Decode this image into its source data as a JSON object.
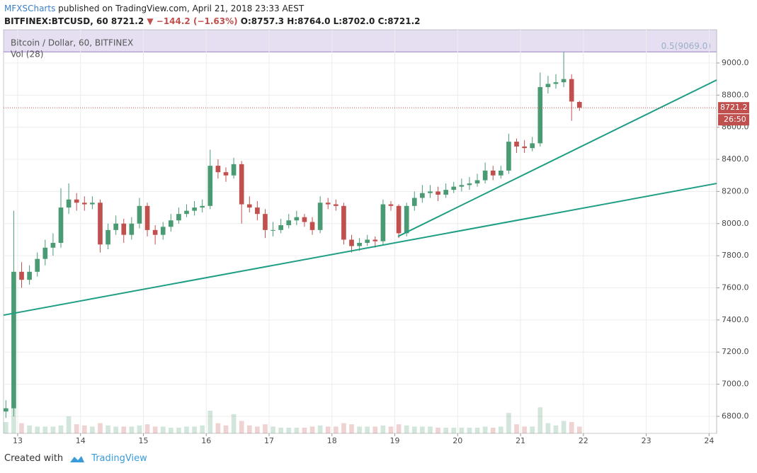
{
  "header": {
    "publisher": "MFXSCharts",
    "published": "published on TradingView.com, April 21, 2018 23:33 AEST",
    "symbol": "BITFINEX:BTCUSD, 60",
    "last": "8721.2",
    "change": "▼ −144.2 (−1.63%)",
    "o": "O:8757.3",
    "h": "H:8764.0",
    "l": "L:8702.0",
    "c": "C:8721.2"
  },
  "chart_data": {
    "type": "candlestick",
    "legend": "Bitcoin / Dollar, 60, BITFINEX",
    "volume_label": "Vol (28)",
    "up_color": "#4a9b73",
    "down_color": "#c0504d",
    "grid": true,
    "x": [
      12.8125,
      12.9375,
      13.0625,
      13.1875,
      13.3125,
      13.4375,
      13.5625,
      13.6875,
      13.8125,
      13.9375,
      14.0625,
      14.1875,
      14.3125,
      14.4375,
      14.5625,
      14.6875,
      14.8125,
      14.9375,
      15.0625,
      15.1875,
      15.3125,
      15.4375,
      15.5625,
      15.6875,
      15.8125,
      15.9375,
      16.0625,
      16.1875,
      16.3125,
      16.4375,
      16.5625,
      16.6875,
      16.8125,
      16.9375,
      17.0625,
      17.1875,
      17.3125,
      17.4375,
      17.5625,
      17.6875,
      17.8125,
      17.9375,
      18.0625,
      18.1875,
      18.3125,
      18.4375,
      18.5625,
      18.6875,
      18.8125,
      18.9375,
      19.0625,
      19.1875,
      19.3125,
      19.4375,
      19.5625,
      19.6875,
      19.8125,
      19.9375,
      20.0625,
      20.1875,
      20.3125,
      20.4375,
      20.5625,
      20.6875,
      20.8125,
      20.9375,
      21.0625,
      21.1875,
      21.3125,
      21.4375,
      21.5625,
      21.6875,
      21.8125,
      21.9375
    ],
    "open": [
      6830,
      6850,
      7700,
      7650,
      7700,
      7780,
      7850,
      7880,
      8100,
      8150,
      8130,
      8120,
      8130,
      7870,
      7960,
      8000,
      7930,
      8000,
      8110,
      7960,
      7930,
      7980,
      8020,
      8060,
      8080,
      8100,
      8110,
      8360,
      8320,
      8300,
      8370,
      8120,
      8100,
      8060,
      7960,
      7960,
      7990,
      8020,
      8040,
      8010,
      7960,
      8130,
      8120,
      8110,
      7900,
      7860,
      7880,
      7900,
      7890,
      8120,
      8110,
      7940,
      8110,
      8160,
      8190,
      8200,
      8180,
      8210,
      8230,
      8240,
      8250,
      8270,
      8330,
      8300,
      8330,
      8510,
      8480,
      8470,
      8500,
      8850,
      8870,
      8880,
      8900,
      8757.3
    ],
    "high": [
      6900,
      8080,
      7760,
      7740,
      7820,
      7900,
      7940,
      8220,
      8250,
      8190,
      8170,
      8170,
      8150,
      8000,
      8050,
      8030,
      8040,
      8160,
      8130,
      7990,
      8010,
      8060,
      8100,
      8120,
      8140,
      8150,
      8460,
      8400,
      8350,
      8410,
      8390,
      8170,
      8140,
      8090,
      8010,
      8030,
      8060,
      8080,
      8060,
      8040,
      8170,
      8160,
      8150,
      8130,
      7930,
      7910,
      7930,
      7920,
      8150,
      8140,
      8120,
      8130,
      8200,
      8240,
      8240,
      8230,
      8250,
      8260,
      8280,
      8290,
      8310,
      8380,
      8360,
      8360,
      8560,
      8530,
      8520,
      8540,
      8940,
      8920,
      8930,
      9070,
      8930,
      8764.0
    ],
    "low": [
      6790,
      6800,
      7600,
      7620,
      7670,
      7740,
      7800,
      7850,
      8060,
      8080,
      8080,
      8090,
      7820,
      7840,
      7930,
      7880,
      7900,
      7970,
      7920,
      7870,
      7900,
      7950,
      8000,
      8040,
      8050,
      8070,
      8090,
      8280,
      8260,
      8280,
      8000,
      8070,
      8020,
      7910,
      7920,
      7940,
      7970,
      7990,
      7980,
      7930,
      7940,
      8090,
      8080,
      7870,
      7820,
      7830,
      7860,
      7850,
      7870,
      8080,
      7910,
      7920,
      8080,
      8130,
      8160,
      8140,
      8160,
      8190,
      8200,
      8210,
      8230,
      8250,
      8270,
      8280,
      8310,
      8440,
      8440,
      8450,
      8480,
      8810,
      8840,
      8850,
      8640,
      8702.0
    ],
    "close": [
      6850,
      7700,
      7650,
      7700,
      7780,
      7850,
      7880,
      8100,
      8150,
      8130,
      8120,
      8130,
      7870,
      7960,
      8000,
      7930,
      8000,
      8110,
      7960,
      7930,
      7980,
      8020,
      8060,
      8080,
      8100,
      8110,
      8360,
      8320,
      8300,
      8370,
      8120,
      8100,
      8060,
      7960,
      7960,
      7990,
      8020,
      8040,
      8010,
      7960,
      8130,
      8120,
      8110,
      7900,
      7860,
      7880,
      7900,
      7890,
      8120,
      8110,
      7940,
      8110,
      8160,
      8190,
      8200,
      8180,
      8210,
      8230,
      8240,
      8250,
      8270,
      8330,
      8300,
      8330,
      8510,
      8480,
      8470,
      8500,
      8850,
      8870,
      8880,
      8900,
      8760,
      8721.2
    ],
    "volume": [
      20,
      50,
      18,
      14,
      12,
      12,
      12,
      14,
      30,
      16,
      14,
      12,
      18,
      14,
      12,
      12,
      12,
      14,
      16,
      12,
      12,
      10,
      10,
      12,
      12,
      14,
      40,
      18,
      14,
      34,
      22,
      14,
      12,
      16,
      12,
      10,
      10,
      10,
      10,
      12,
      14,
      12,
      12,
      18,
      16,
      12,
      12,
      12,
      14,
      12,
      16,
      14,
      12,
      12,
      12,
      10,
      10,
      10,
      10,
      10,
      10,
      12,
      10,
      12,
      36,
      16,
      12,
      12,
      46,
      18,
      14,
      22,
      20,
      12
    ],
    "vlim": [
      0,
      150
    ],
    "xlim": [
      12.775,
      24.12
    ],
    "xticks": [
      13,
      14,
      15,
      16,
      17,
      18,
      19,
      20,
      21,
      22,
      23,
      24
    ],
    "ylim": [
      6694,
      9207
    ],
    "yticks": [
      {
        "value": 6800,
        "label": "6800.0"
      },
      {
        "value": 7000,
        "label": "7000.0"
      },
      {
        "value": 7200,
        "label": "7200.0"
      },
      {
        "value": 7400,
        "label": "7400.0"
      },
      {
        "value": 7600,
        "label": "7600.0"
      },
      {
        "value": 7800,
        "label": "7800.0"
      },
      {
        "value": 8000,
        "label": "8000.0"
      },
      {
        "value": 8200,
        "label": "8200.0"
      },
      {
        "value": 8400,
        "label": "8400.0"
      },
      {
        "value": 8600,
        "label": "8600.0"
      },
      {
        "value": 8800,
        "label": "8800.0"
      },
      {
        "value": 9000,
        "label": "9000.0"
      }
    ],
    "fib": {
      "label": "0.5(9069.0)",
      "value": 9069,
      "color": "#9c7fc9"
    },
    "countdown": "26:50",
    "trend_lines": [
      {
        "x": [
          12.775,
          24.12
        ],
        "y": [
          7430,
          8250
        ],
        "color": "#1e9e83"
      },
      {
        "x": [
          19.05,
          24.12
        ],
        "y": [
          7920,
          8894
        ],
        "color": "#1e9e83"
      }
    ]
  },
  "footer": {
    "created": "Created with",
    "brand": "TradingView"
  }
}
